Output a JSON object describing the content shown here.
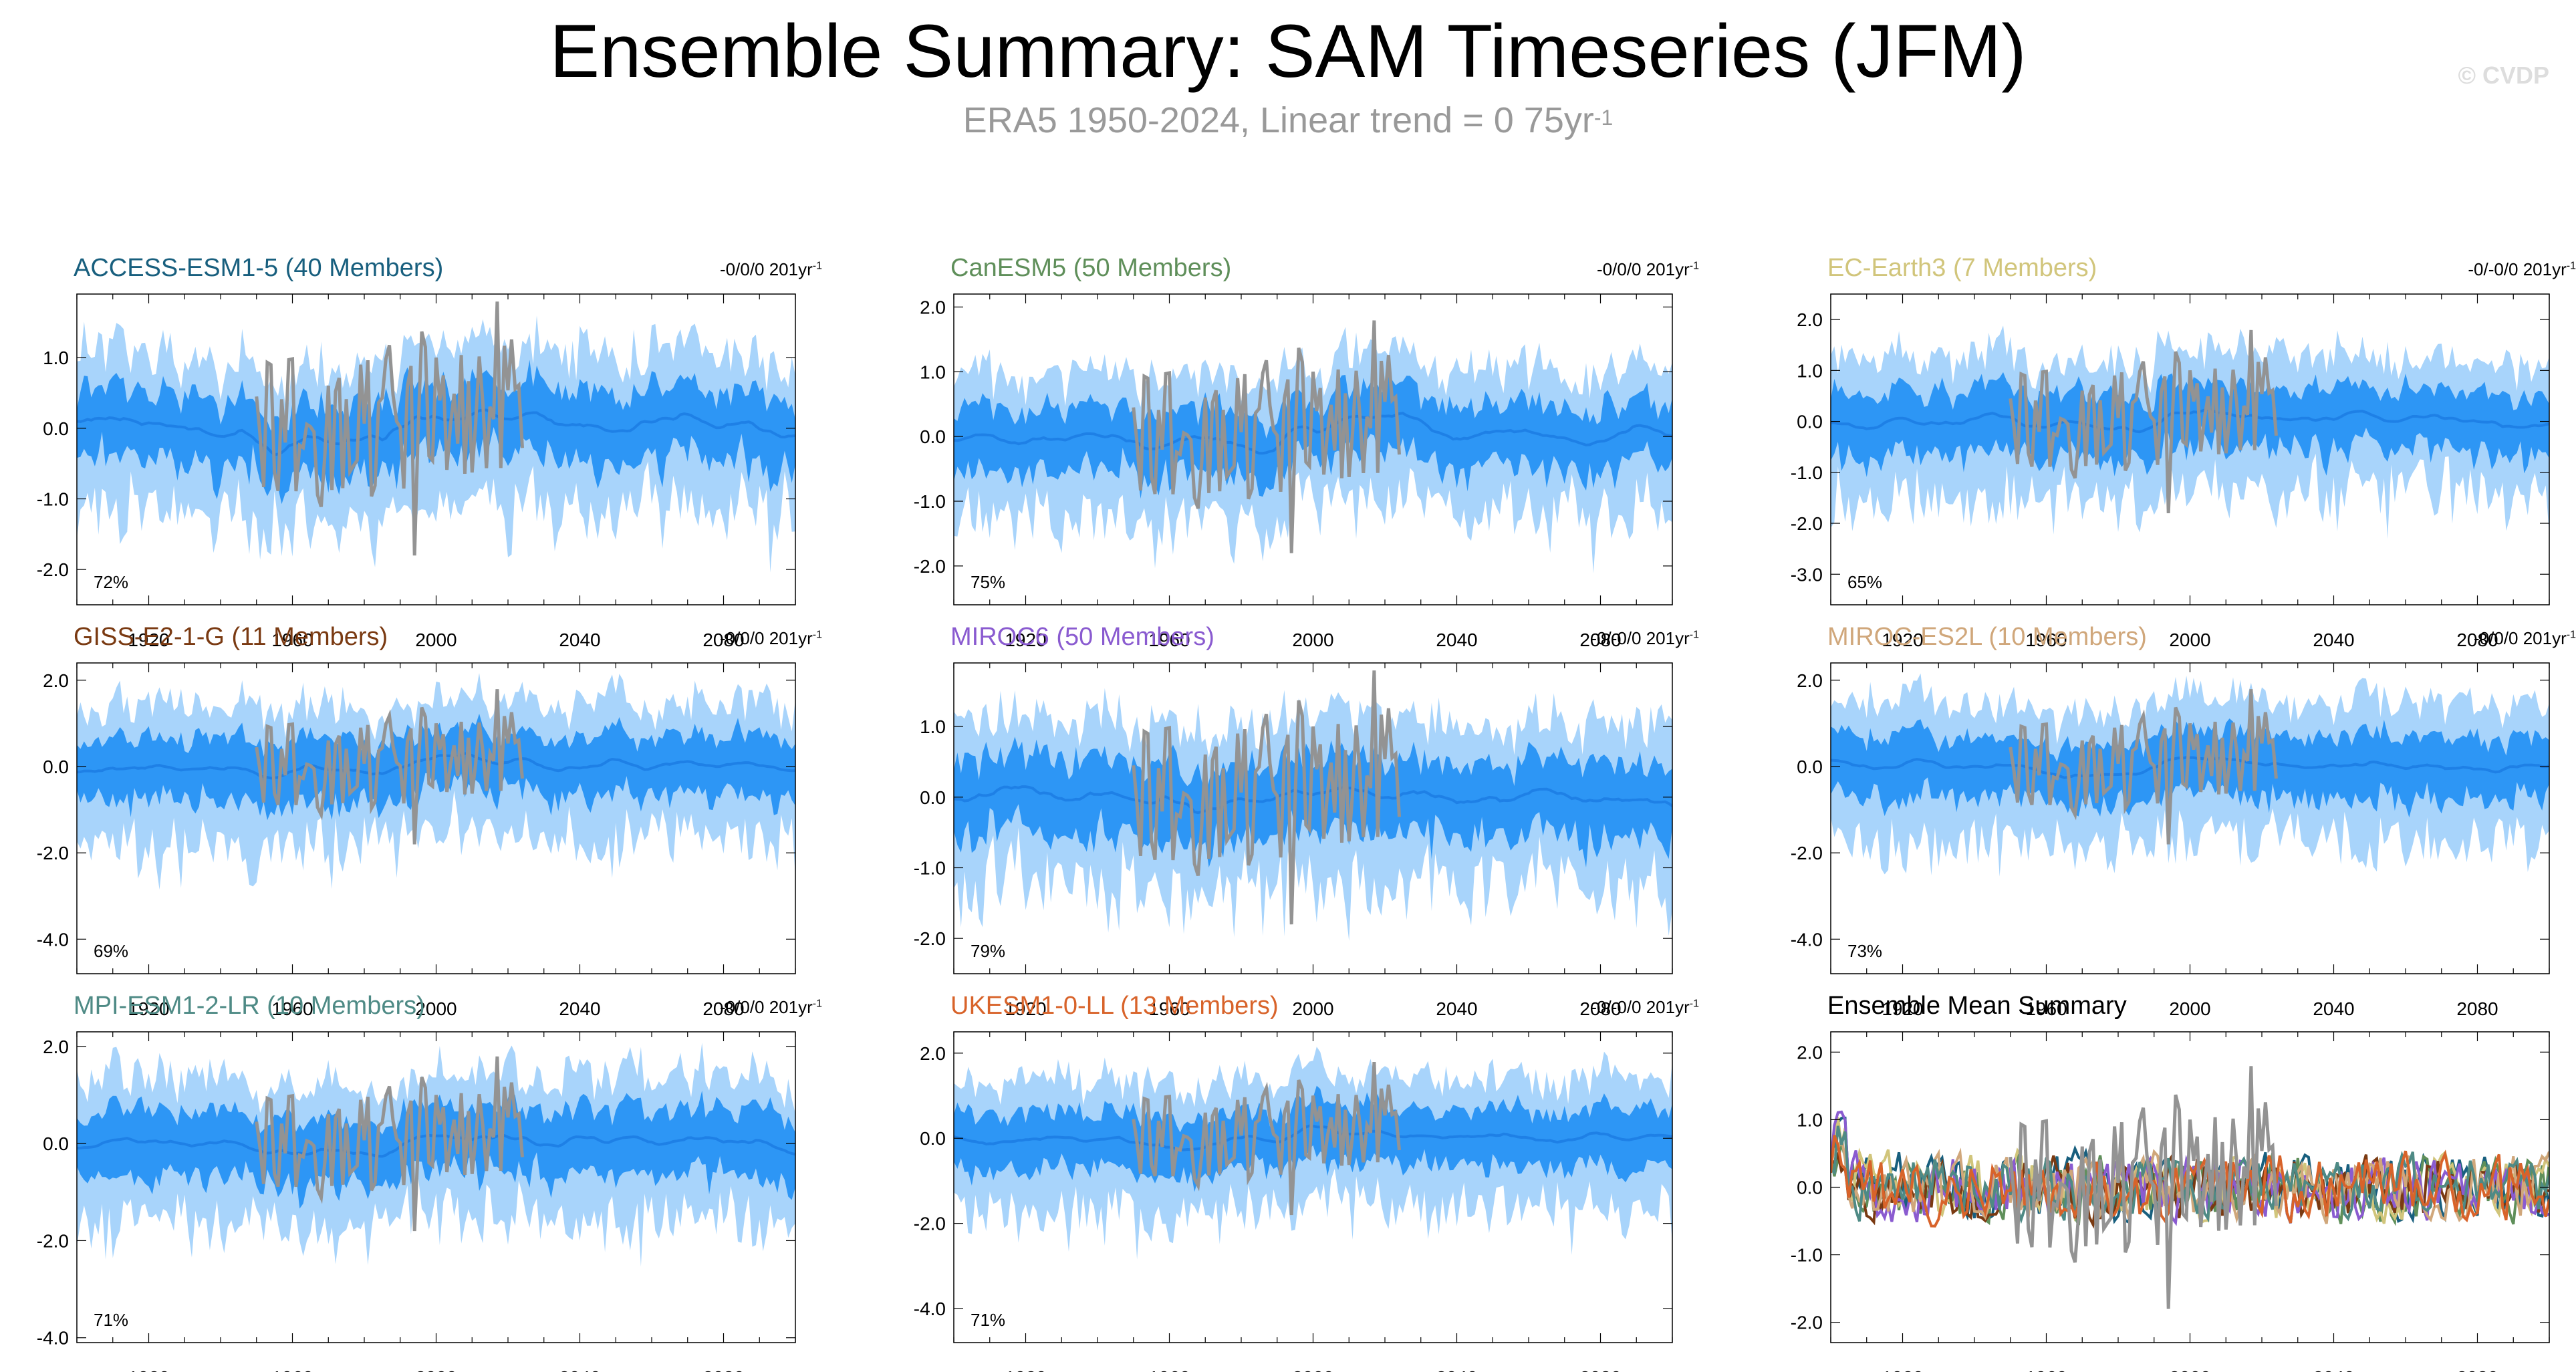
{
  "title": "Ensemble Summary: SAM Timeseries (JFM)",
  "subtitle": {
    "text": "ERA5 1950-2024, Linear trend = 0 75yr",
    "sup": "-1"
  },
  "credit": "© CVDP",
  "colors": {
    "outer_band": "#a8d4fb",
    "inner_band": "#2d96f5",
    "mean": "#1e80e6",
    "obs": "#939393"
  },
  "x_ticks": [
    "1920",
    "1960",
    "2000",
    "2040",
    "2080"
  ],
  "chart_data": [
    {
      "type": "area",
      "title": "ACCESS-ESM1-5 (40 Members)",
      "title_color": "#185f7e",
      "trend": "-0/0/0 201yr",
      "trend_sup": "-1",
      "percent": "72%",
      "xlim": [
        1900,
        2100
      ],
      "ylim": [
        -2.5,
        1.9
      ],
      "y_ticks": [
        "1.0",
        "0.0",
        "-1.0",
        "-2.0"
      ],
      "y_tick_values": [
        1,
        0,
        -1,
        -2
      ],
      "seed": 11,
      "amp": 0.55
    },
    {
      "type": "area",
      "title": "CanESM5 (50 Members)",
      "title_color": "#5f8f5a",
      "trend": "-0/0/0 201yr",
      "trend_sup": "-1",
      "percent": "75%",
      "xlim": [
        1900,
        2100
      ],
      "ylim": [
        -2.6,
        2.2
      ],
      "y_ticks": [
        "2.0",
        "1.0",
        "0.0",
        "-1.0",
        "-2.0"
      ],
      "y_tick_values": [
        2,
        1,
        0,
        -1,
        -2
      ],
      "seed": 23,
      "amp": 0.55
    },
    {
      "type": "area",
      "title": "EC-Earth3 (7 Members)",
      "title_color": "#d1c57b",
      "trend": "-0/-0/0 201yr",
      "trend_sup": "-1",
      "percent": "65%",
      "xlim": [
        1900,
        2100
      ],
      "ylim": [
        -3.6,
        2.5
      ],
      "y_ticks": [
        "2.0",
        "1.0",
        "0.0",
        "-1.0",
        "-2.0",
        "-3.0"
      ],
      "y_tick_values": [
        2,
        1,
        0,
        -1,
        -2,
        -3
      ],
      "seed": 37,
      "amp": 0.7
    },
    {
      "type": "area",
      "title": "GISS-E2-1-G (11 Members)",
      "title_color": "#7a3a12",
      "trend": "-0/0/0 201yr",
      "trend_sup": "-1",
      "percent": "69%",
      "xlim": [
        1900,
        2100
      ],
      "ylim": [
        -4.8,
        2.4
      ],
      "y_ticks": [
        "2.0",
        "0.0",
        "-2.0",
        "-4.0"
      ],
      "y_tick_values": [
        2,
        0,
        -2,
        -4
      ],
      "seed": 41,
      "amp": 0.8
    },
    {
      "type": "area",
      "title": "MIROC6 (50 Members)",
      "title_color": "#8a5bd0",
      "trend": "-0/-0/0 201yr",
      "trend_sup": "-1",
      "percent": "79%",
      "xlim": [
        1900,
        2100
      ],
      "ylim": [
        -2.5,
        1.9
      ],
      "y_ticks": [
        "1.0",
        "0.0",
        "-1.0",
        "-2.0"
      ],
      "y_tick_values": [
        1,
        0,
        -1,
        -2
      ],
      "seed": 53,
      "amp": 0.6
    },
    {
      "type": "area",
      "title": "MIROC-ES2L (10 Members)",
      "title_color": "#d0a77b",
      "trend": "-0/0/0 201yr",
      "trend_sup": "-1",
      "percent": "73%",
      "xlim": [
        1900,
        2100
      ],
      "ylim": [
        -4.8,
        2.4
      ],
      "y_ticks": [
        "2.0",
        "0.0",
        "-2.0",
        "-4.0"
      ],
      "y_tick_values": [
        2,
        0,
        -2,
        -4
      ],
      "seed": 61,
      "amp": 0.8
    },
    {
      "type": "area",
      "title": "MPI-ESM1-2-LR (10 Members)",
      "title_color": "#4e8a85",
      "trend": "-0/0/0 201yr",
      "trend_sup": "-1",
      "percent": "71%",
      "xlim": [
        1900,
        2100
      ],
      "ylim": [
        -4.1,
        2.3
      ],
      "y_ticks": [
        "2.0",
        "0.0",
        "-2.0",
        "-4.0"
      ],
      "y_tick_values": [
        2,
        0,
        -2,
        -4
      ],
      "seed": 71,
      "amp": 0.75
    },
    {
      "type": "area",
      "title": "UKESM1-0-LL (13 Members)",
      "title_color": "#d8632a",
      "trend": "-0/-0/0 201yr",
      "trend_sup": "-1",
      "percent": "71%",
      "xlim": [
        1900,
        2100
      ],
      "ylim": [
        -4.8,
        2.5
      ],
      "y_ticks": [
        "2.0",
        "0.0",
        "-2.0",
        "-4.0"
      ],
      "y_tick_values": [
        2,
        0,
        -2,
        -4
      ],
      "seed": 83,
      "amp": 0.75
    },
    {
      "type": "line",
      "title": "Ensemble Mean Summary",
      "title_color": "#000000",
      "xlim": [
        1900,
        2100
      ],
      "ylim": [
        -2.3,
        2.3
      ],
      "y_ticks": [
        "2.0",
        "1.0",
        "0.0",
        "-1.0",
        "-2.0"
      ],
      "y_tick_values": [
        2,
        1,
        0,
        -1,
        -2
      ],
      "seed": 97,
      "series": [
        {
          "name": "ACCESS-ESM1-5",
          "color": "#185f7e"
        },
        {
          "name": "CanESM5",
          "color": "#5f8f5a"
        },
        {
          "name": "EC-Earth3",
          "color": "#d1c57b"
        },
        {
          "name": "GISS-E2-1-G",
          "color": "#7a3a12"
        },
        {
          "name": "MIROC6",
          "color": "#8a5bd0"
        },
        {
          "name": "MIROC-ES2L",
          "color": "#d0a77b"
        },
        {
          "name": "MPI-ESM1-2-LR",
          "color": "#4e8a85"
        },
        {
          "name": "UKESM1-0-LL",
          "color": "#d8632a"
        }
      ]
    }
  ]
}
